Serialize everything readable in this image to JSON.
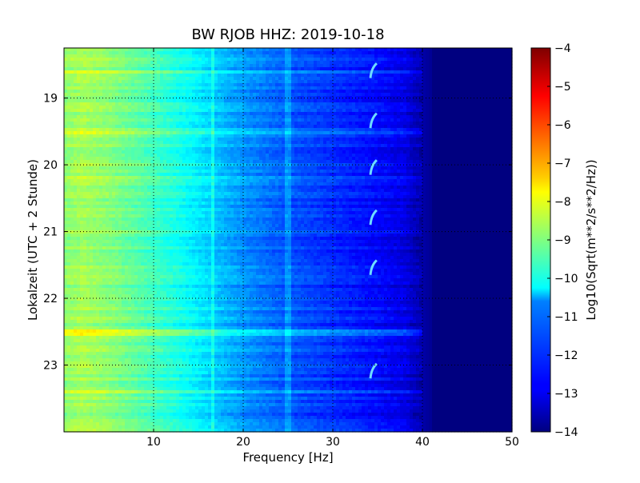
{
  "chart_data": {
    "type": "heatmap",
    "title": "BW RJOB HHZ: 2019-10-18",
    "xlabel": "Frequency [Hz]",
    "ylabel": "Lokalzeit (UTC + 2 Stunde)",
    "xlim": [
      0,
      50
    ],
    "ylim": [
      18.25,
      24.0
    ],
    "y_inverted": true,
    "x_ticks": [
      10,
      20,
      30,
      40,
      50
    ],
    "x_tick_labels": [
      "10",
      "20",
      "30",
      "40",
      "50"
    ],
    "y_ticks": [
      19,
      20,
      21,
      22,
      23
    ],
    "y_tick_labels": [
      "19",
      "20",
      "21",
      "22",
      "23"
    ],
    "grid": true,
    "colormap": "jet",
    "colorbar": {
      "label": "Log10(Sqrt(m**2/s**2/Hz))",
      "range": [
        -14,
        -4
      ],
      "ticks": [
        -4,
        -5,
        -6,
        -7,
        -8,
        -9,
        -10,
        -11,
        -12,
        -13,
        -14
      ],
      "tick_labels": [
        "−4",
        "−5",
        "−6",
        "−7",
        "−8",
        "−9",
        "−10",
        "−11",
        "−12",
        "−13",
        "−14"
      ]
    },
    "spectrum_profile": {
      "frequency_hz": [
        0,
        2,
        5,
        8,
        10,
        12,
        15,
        17,
        20,
        25,
        30,
        35,
        38,
        40,
        42,
        45,
        50
      ],
      "level": [
        -8.9,
        -8.6,
        -8.9,
        -9.3,
        -9.6,
        -9.9,
        -10.4,
        -10.8,
        -11.3,
        -11.9,
        -12.3,
        -12.7,
        -13.0,
        -13.6,
        -14.0,
        -14.0,
        -14.0
      ]
    },
    "bright_lines_hz": [
      16.7,
      25.0
    ],
    "strong_time_bands_hour": [
      22.52,
      18.6,
      19.5,
      20.2,
      23.4
    ],
    "recurring_event_times_hour": [
      18.5,
      19.25,
      19.95,
      20.7,
      21.45,
      23.0
    ],
    "recurring_event_freq_hz": 34.5
  }
}
